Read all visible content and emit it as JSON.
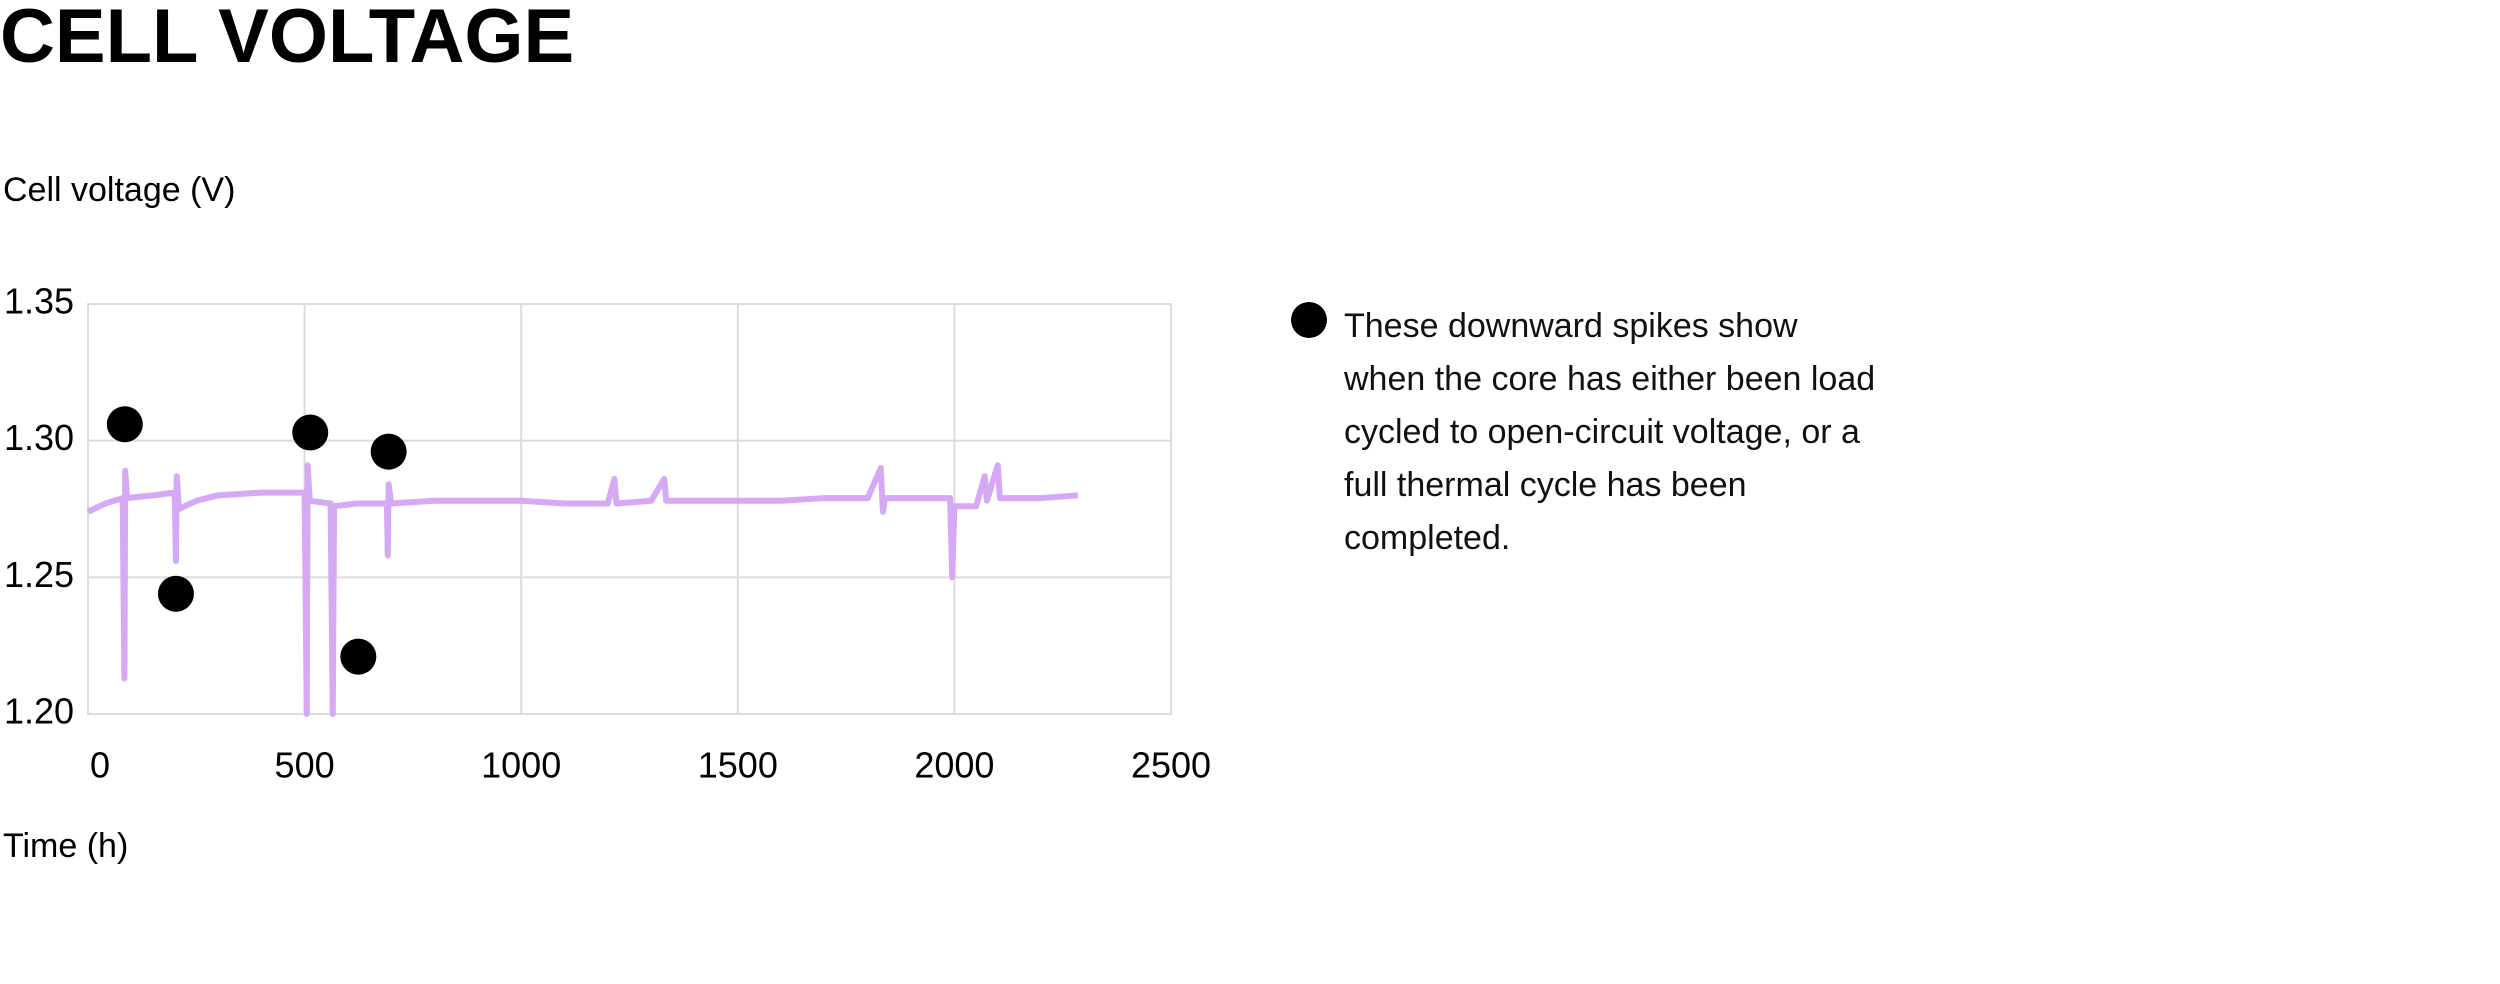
{
  "chart_data": {
    "type": "line",
    "title": "CELL VOLTAGE",
    "y_label": "Cell voltage (V)",
    "x_label": "Time (h)",
    "xlim": [
      0,
      2500
    ],
    "xticks": [
      0,
      500,
      1000,
      1500,
      2000,
      2500
    ],
    "ylim": [
      1.2,
      1.35
    ],
    "yticks": [
      {
        "value": 1.2,
        "label": "1.20"
      },
      1.25,
      {
        "value": 1.3,
        "label": "1.30"
      },
      1.35
    ],
    "grid": true,
    "legend": "right",
    "series": [
      {
        "type": "line",
        "color": "#d6a9f4",
        "x": [
          0,
          40,
          80,
          84,
          86,
          90,
          150,
          200,
          203,
          205,
          210,
          250,
          300,
          400,
          500,
          505,
          507,
          512,
          560,
          565,
          568,
          620,
          690,
          692,
          694,
          700,
          800,
          900,
          1000,
          1100,
          1200,
          1215,
          1220,
          1300,
          1330,
          1335,
          1400,
          1500,
          1600,
          1700,
          1800,
          1830,
          1835,
          1840,
          1900,
          1990,
          1995,
          2000,
          2050,
          2070,
          2075,
          2100,
          2105,
          2200,
          2285
        ],
        "values": [
          1.274,
          1.277,
          1.279,
          1.213,
          1.289,
          1.279,
          1.28,
          1.281,
          1.256,
          1.287,
          1.275,
          1.278,
          1.28,
          1.281,
          1.281,
          1.2,
          1.291,
          1.278,
          1.277,
          1.2,
          1.276,
          1.277,
          1.277,
          1.258,
          1.284,
          1.277,
          1.278,
          1.278,
          1.278,
          1.277,
          1.277,
          1.286,
          1.277,
          1.278,
          1.286,
          1.278,
          1.278,
          1.278,
          1.278,
          1.279,
          1.279,
          1.29,
          1.274,
          1.279,
          1.279,
          1.279,
          1.25,
          1.276,
          1.276,
          1.287,
          1.278,
          1.291,
          1.279,
          1.279,
          1.28
        ]
      },
      {
        "type": "scatter",
        "name": "These downward spikes show when the core has either been load cycled to open-circuit voltage, or a full thermal cycle has been completed.",
        "color": "#000000",
        "x": [
          85,
          203,
          513,
          624,
          694
        ],
        "values": [
          1.306,
          1.244,
          1.303,
          1.221,
          1.296
        ]
      }
    ]
  }
}
